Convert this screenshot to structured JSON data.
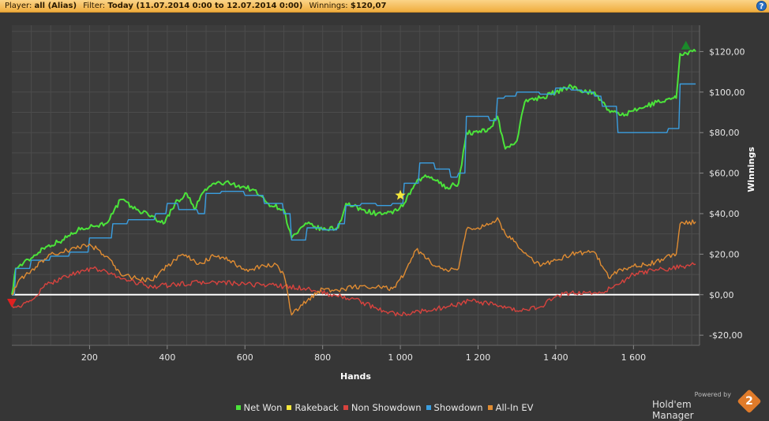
{
  "header": {
    "player_label": "Player:",
    "player_value": "all (Alias)",
    "filter_label": "Filter:",
    "filter_value": "Today (11.07.2014 0:00 to 12.07.2014 0:00)",
    "winnings_label": "Winnings:",
    "winnings_value": "$120,07",
    "help_icon": "?"
  },
  "footer": {
    "powered_by": "Powered by",
    "brand": "Hold'em Manager",
    "brand_badge": "2"
  },
  "chart_data": {
    "type": "line",
    "xlabel": "Hands",
    "ylabel": "Winnings",
    "xlim": [
      0,
      1770
    ],
    "ylim": [
      -25,
      133
    ],
    "x_ticks": [
      200,
      400,
      600,
      800,
      1000,
      1200,
      1400,
      1600
    ],
    "x_tick_labels": [
      "200",
      "400",
      "600",
      "800",
      "1 000",
      "1 200",
      "1 400",
      "1 600"
    ],
    "y_ticks": [
      -20,
      0,
      20,
      40,
      60,
      80,
      100,
      120
    ],
    "y_tick_labels": [
      "-$20,00",
      "$0,00",
      "$20,00",
      "$40,00",
      "$60,00",
      "$80,00",
      "$100,00",
      "$120,00"
    ],
    "grid": true,
    "legend_position": "bottom",
    "series": [
      {
        "name": "Net Won",
        "color": "#4be33a",
        "points": [
          [
            0,
            0
          ],
          [
            10,
            13
          ],
          [
            50,
            18
          ],
          [
            80,
            23
          ],
          [
            130,
            27
          ],
          [
            180,
            33
          ],
          [
            240,
            35
          ],
          [
            260,
            40
          ],
          [
            280,
            47
          ],
          [
            320,
            42
          ],
          [
            360,
            39
          ],
          [
            390,
            35
          ],
          [
            420,
            45
          ],
          [
            450,
            50
          ],
          [
            470,
            42
          ],
          [
            490,
            50
          ],
          [
            520,
            55
          ],
          [
            560,
            55
          ],
          [
            620,
            52
          ],
          [
            660,
            45
          ],
          [
            700,
            42
          ],
          [
            720,
            28
          ],
          [
            760,
            35
          ],
          [
            800,
            32
          ],
          [
            840,
            33
          ],
          [
            860,
            45
          ],
          [
            900,
            42
          ],
          [
            940,
            40
          ],
          [
            980,
            40
          ],
          [
            1010,
            45
          ],
          [
            1040,
            55
          ],
          [
            1060,
            58
          ],
          [
            1080,
            58
          ],
          [
            1100,
            55
          ],
          [
            1120,
            53
          ],
          [
            1150,
            55
          ],
          [
            1170,
            80
          ],
          [
            1200,
            80
          ],
          [
            1230,
            82
          ],
          [
            1250,
            88
          ],
          [
            1270,
            72
          ],
          [
            1300,
            76
          ],
          [
            1320,
            95
          ],
          [
            1340,
            97
          ],
          [
            1360,
            97
          ],
          [
            1400,
            100
          ],
          [
            1440,
            103
          ],
          [
            1480,
            100
          ],
          [
            1500,
            100
          ],
          [
            1520,
            95
          ],
          [
            1540,
            90
          ],
          [
            1580,
            89
          ],
          [
            1620,
            92
          ],
          [
            1660,
            95
          ],
          [
            1700,
            97
          ],
          [
            1710,
            97
          ],
          [
            1720,
            119
          ],
          [
            1760,
            120
          ]
        ]
      },
      {
        "name": "Rakeback",
        "color": "#f5e83a",
        "points": [
          [
            0,
            0
          ],
          [
            1770,
            0
          ]
        ]
      },
      {
        "name": "Non Showdown",
        "color": "#d8433e",
        "points": [
          [
            0,
            -5
          ],
          [
            20,
            -6
          ],
          [
            50,
            -3
          ],
          [
            90,
            5
          ],
          [
            150,
            10
          ],
          [
            210,
            13
          ],
          [
            260,
            10
          ],
          [
            300,
            7
          ],
          [
            360,
            4
          ],
          [
            420,
            5
          ],
          [
            480,
            6
          ],
          [
            540,
            6
          ],
          [
            600,
            5
          ],
          [
            660,
            5
          ],
          [
            700,
            4
          ],
          [
            760,
            3
          ],
          [
            820,
            0
          ],
          [
            880,
            -2
          ],
          [
            940,
            -7
          ],
          [
            1000,
            -10
          ],
          [
            1060,
            -8
          ],
          [
            1120,
            -6
          ],
          [
            1180,
            -3
          ],
          [
            1240,
            -5
          ],
          [
            1300,
            -8
          ],
          [
            1360,
            -6
          ],
          [
            1400,
            -1
          ],
          [
            1440,
            1
          ],
          [
            1480,
            1
          ],
          [
            1520,
            1
          ],
          [
            1560,
            5
          ],
          [
            1600,
            10
          ],
          [
            1650,
            12
          ],
          [
            1700,
            13
          ],
          [
            1760,
            15
          ]
        ]
      },
      {
        "name": "Showdown",
        "color": "#3a9ee0",
        "points": [
          [
            0,
            0
          ],
          [
            10,
            13
          ],
          [
            50,
            17
          ],
          [
            100,
            19
          ],
          [
            150,
            21
          ],
          [
            200,
            28
          ],
          [
            260,
            35
          ],
          [
            300,
            37
          ],
          [
            330,
            37
          ],
          [
            370,
            40
          ],
          [
            400,
            45
          ],
          [
            430,
            42
          ],
          [
            480,
            40
          ],
          [
            500,
            50
          ],
          [
            540,
            51
          ],
          [
            600,
            49
          ],
          [
            650,
            45
          ],
          [
            700,
            40
          ],
          [
            720,
            27
          ],
          [
            760,
            33
          ],
          [
            800,
            32
          ],
          [
            840,
            35
          ],
          [
            860,
            44
          ],
          [
            900,
            45
          ],
          [
            940,
            44
          ],
          [
            980,
            45
          ],
          [
            1010,
            55
          ],
          [
            1050,
            65
          ],
          [
            1090,
            62
          ],
          [
            1130,
            58
          ],
          [
            1150,
            60
          ],
          [
            1170,
            88
          ],
          [
            1200,
            88
          ],
          [
            1230,
            86
          ],
          [
            1250,
            97
          ],
          [
            1270,
            98
          ],
          [
            1300,
            100
          ],
          [
            1330,
            100
          ],
          [
            1360,
            99
          ],
          [
            1400,
            102
          ],
          [
            1440,
            101
          ],
          [
            1470,
            100
          ],
          [
            1500,
            98
          ],
          [
            1520,
            93
          ],
          [
            1560,
            80
          ],
          [
            1600,
            80
          ],
          [
            1640,
            80
          ],
          [
            1690,
            82
          ],
          [
            1710,
            82
          ],
          [
            1720,
            104
          ],
          [
            1760,
            104
          ]
        ]
      },
      {
        "name": "All-In EV",
        "color": "#e08c32",
        "points": [
          [
            0,
            0
          ],
          [
            15,
            6
          ],
          [
            50,
            12
          ],
          [
            100,
            20
          ],
          [
            150,
            22
          ],
          [
            200,
            25
          ],
          [
            250,
            18
          ],
          [
            280,
            10
          ],
          [
            320,
            8
          ],
          [
            360,
            7
          ],
          [
            400,
            14
          ],
          [
            440,
            20
          ],
          [
            480,
            15
          ],
          [
            520,
            19
          ],
          [
            560,
            17
          ],
          [
            600,
            12
          ],
          [
            640,
            14
          ],
          [
            680,
            15
          ],
          [
            700,
            10
          ],
          [
            720,
            -10
          ],
          [
            760,
            -3
          ],
          [
            800,
            3
          ],
          [
            840,
            2
          ],
          [
            880,
            4
          ],
          [
            940,
            4
          ],
          [
            980,
            3
          ],
          [
            1010,
            10
          ],
          [
            1040,
            22
          ],
          [
            1060,
            20
          ],
          [
            1080,
            15
          ],
          [
            1120,
            12
          ],
          [
            1150,
            13
          ],
          [
            1170,
            32
          ],
          [
            1200,
            33
          ],
          [
            1230,
            35
          ],
          [
            1250,
            38
          ],
          [
            1270,
            30
          ],
          [
            1300,
            25
          ],
          [
            1330,
            19
          ],
          [
            1360,
            14
          ],
          [
            1400,
            17
          ],
          [
            1440,
            20
          ],
          [
            1480,
            21
          ],
          [
            1500,
            21
          ],
          [
            1520,
            14
          ],
          [
            1540,
            8
          ],
          [
            1560,
            12
          ],
          [
            1600,
            14
          ],
          [
            1640,
            15
          ],
          [
            1680,
            18
          ],
          [
            1700,
            20
          ],
          [
            1710,
            20
          ],
          [
            1720,
            35
          ],
          [
            1760,
            36
          ]
        ]
      }
    ],
    "markers": [
      {
        "name": "start-marker",
        "type": "triangle-down",
        "color": "#e02020",
        "x": 0,
        "y": -4
      },
      {
        "name": "rakeback-star",
        "type": "star",
        "color": "#f5e83a",
        "x": 1000,
        "y": 49
      },
      {
        "name": "max-marker",
        "type": "triangle-up",
        "color": "#1a8a2a",
        "x": 1735,
        "y": 123
      }
    ]
  }
}
